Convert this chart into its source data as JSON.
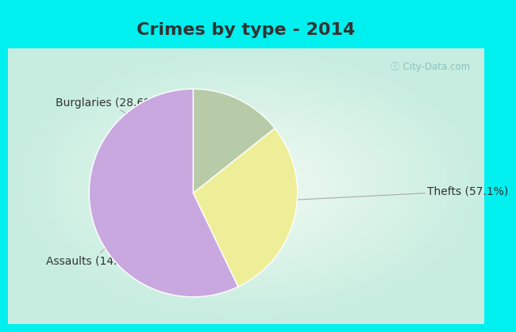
{
  "title": "Crimes by type - 2014",
  "slices": [
    {
      "label": "Thefts (57.1%)",
      "value": 57.1,
      "color": "#C9A8E0"
    },
    {
      "label": "Burglaries (28.6%)",
      "value": 28.6,
      "color": "#EEEE99"
    },
    {
      "label": "Assaults (14.3%)",
      "value": 14.3,
      "color": "#B8CBA8"
    }
  ],
  "background_color_outer": "#00EFEF",
  "background_color_inner": "#E8F8F0",
  "title_fontsize": 16,
  "label_fontsize": 10,
  "startangle": 90,
  "watermark": "ⓘ City-Data.com",
  "title_color": "#333333",
  "label_color": "#333333"
}
